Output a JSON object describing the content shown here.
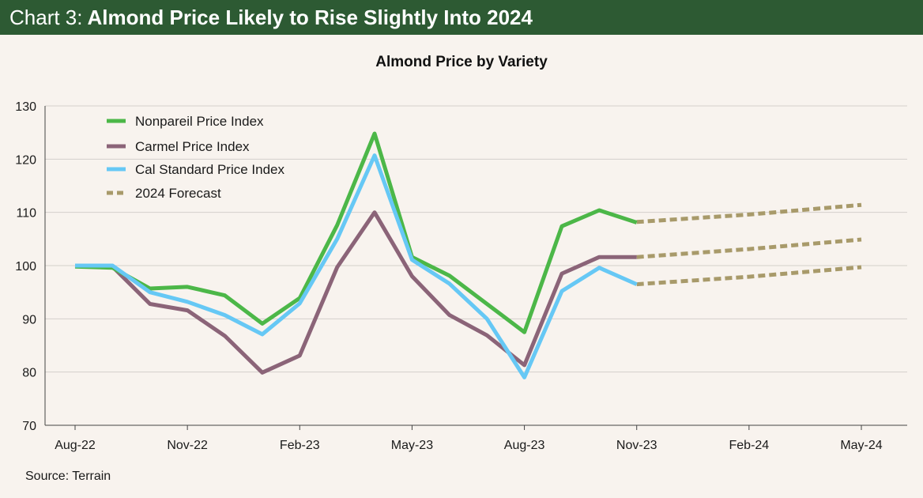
{
  "header": {
    "prefix": "Chart 3:",
    "title": "Almond Price Likely to Rise Slightly Into 2024",
    "background": "#2d5a33"
  },
  "chart_data": {
    "type": "line",
    "title": "Almond Price by Variety",
    "xlabel": "",
    "ylabel": "",
    "ylim": [
      70,
      130
    ],
    "yticks": [
      70,
      80,
      90,
      100,
      110,
      120,
      130
    ],
    "grid": true,
    "legend": "top-left",
    "x_index_range": [
      0,
      21
    ],
    "x_tick_labels": [
      {
        "i": 0,
        "label": "Aug-22"
      },
      {
        "i": 3,
        "label": "Nov-22"
      },
      {
        "i": 6,
        "label": "Feb-23"
      },
      {
        "i": 9,
        "label": "May-23"
      },
      {
        "i": 12,
        "label": "Aug-23"
      },
      {
        "i": 15,
        "label": "Nov-23"
      },
      {
        "i": 18,
        "label": "Feb-24"
      },
      {
        "i": 21,
        "label": "May-24"
      }
    ],
    "series": [
      {
        "name": "Nonpareil Price Index",
        "color": "#4cb748",
        "dashed": false,
        "points": [
          [
            0,
            99.8
          ],
          [
            1,
            99.6
          ],
          [
            2,
            95.7
          ],
          [
            3,
            96.0
          ],
          [
            4,
            94.4
          ],
          [
            5,
            89.1
          ],
          [
            6,
            93.9
          ],
          [
            7,
            107.6
          ],
          [
            8,
            124.8
          ],
          [
            9,
            101.6
          ],
          [
            10,
            98.1
          ],
          [
            11,
            92.8
          ],
          [
            12,
            87.5
          ],
          [
            13,
            107.4
          ],
          [
            14,
            110.4
          ],
          [
            15,
            108.1
          ]
        ]
      },
      {
        "name": "Carmel Price Index",
        "color": "#8b6478",
        "dashed": false,
        "points": [
          [
            0,
            100.0
          ],
          [
            1,
            99.8
          ],
          [
            2,
            92.8
          ],
          [
            3,
            91.6
          ],
          [
            4,
            86.8
          ],
          [
            5,
            79.9
          ],
          [
            6,
            83.1
          ],
          [
            7,
            99.7
          ],
          [
            8,
            110.0
          ],
          [
            9,
            98.0
          ],
          [
            10,
            90.7
          ],
          [
            11,
            86.9
          ],
          [
            12,
            81.3
          ],
          [
            13,
            98.5
          ],
          [
            14,
            101.6
          ],
          [
            15,
            101.6
          ]
        ]
      },
      {
        "name": "Cal Standard Price Index",
        "color": "#66c8f5",
        "dashed": false,
        "points": [
          [
            0,
            100.0
          ],
          [
            1,
            100.0
          ],
          [
            2,
            95.0
          ],
          [
            3,
            93.2
          ],
          [
            4,
            90.7
          ],
          [
            5,
            87.1
          ],
          [
            6,
            92.9
          ],
          [
            7,
            105.0
          ],
          [
            8,
            120.7
          ],
          [
            9,
            101.1
          ],
          [
            10,
            96.6
          ],
          [
            11,
            90.0
          ],
          [
            12,
            79.0
          ],
          [
            13,
            95.2
          ],
          [
            14,
            99.6
          ],
          [
            15,
            96.5
          ]
        ]
      },
      {
        "name": "2024 Forecast",
        "color": "#a89a6a",
        "dashed": true,
        "points": [
          [
            15,
            108.2
          ],
          [
            18,
            109.6
          ],
          [
            21,
            111.4
          ]
        ]
      }
    ],
    "forecast_extra_lines": [
      {
        "color": "#a89a6a",
        "points": [
          [
            15,
            101.6
          ],
          [
            18,
            103.1
          ],
          [
            21,
            104.9
          ]
        ]
      },
      {
        "color": "#a89a6a",
        "points": [
          [
            15,
            96.5
          ],
          [
            18,
            97.9
          ],
          [
            21,
            99.7
          ]
        ]
      }
    ]
  },
  "source": "Source: Terrain"
}
